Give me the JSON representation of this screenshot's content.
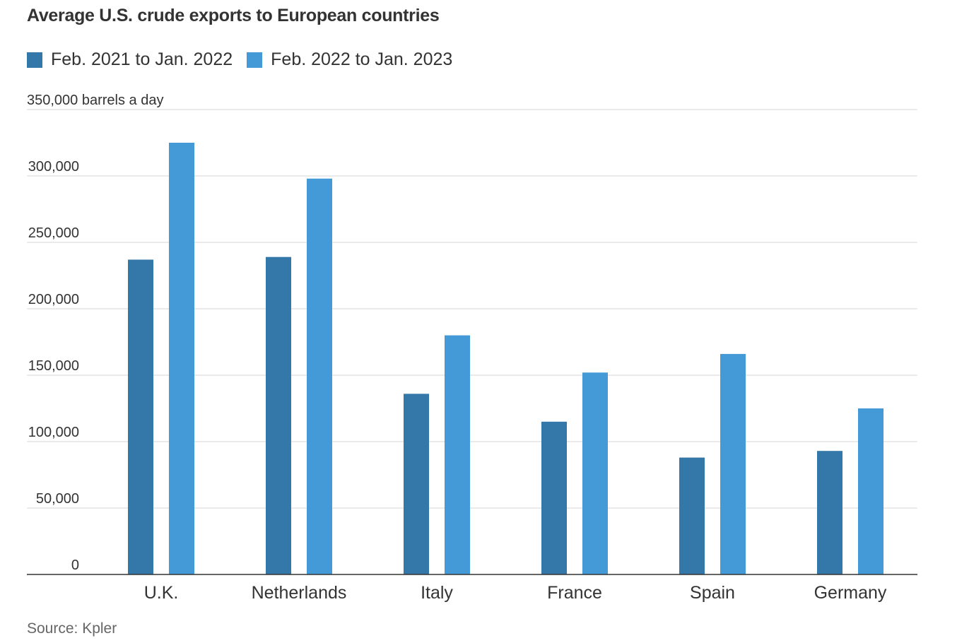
{
  "chart_data": {
    "type": "bar",
    "title": "Average U.S. crude exports to European countries",
    "ylabel": "barrels a day",
    "xlabel": "",
    "ylim": [
      0,
      350000
    ],
    "y_ticks": [
      0,
      50000,
      100000,
      150000,
      200000,
      250000,
      300000,
      350000
    ],
    "y_tick_labels": [
      "0",
      "50,000",
      "100,000",
      "150,000",
      "200,000",
      "250,000",
      "300,000",
      "350,000 barrels a day"
    ],
    "categories": [
      "U.K.",
      "Netherlands",
      "Italy",
      "France",
      "Spain",
      "Germany"
    ],
    "series": [
      {
        "name": "Feb. 2021 to Jan. 2022",
        "color": "#3478aa",
        "values": [
          237000,
          239000,
          136000,
          115000,
          88000,
          93000
        ]
      },
      {
        "name": "Feb. 2022 to Jan. 2023",
        "color": "#4499d7",
        "values": [
          325000,
          298000,
          180000,
          152000,
          166000,
          125000
        ]
      }
    ],
    "grid": true,
    "legend": "top-left",
    "source": "Source: Kpler"
  }
}
